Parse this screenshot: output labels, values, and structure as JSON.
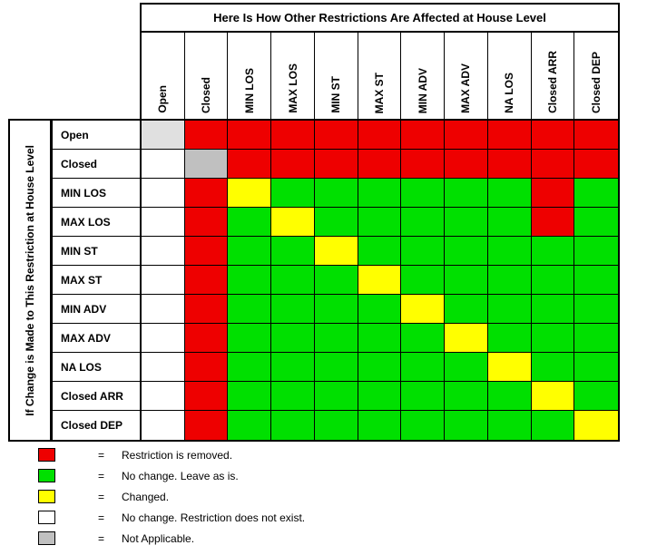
{
  "chart_data": {
    "type": "heatmap",
    "title": "Here Is How Other Restrictions Are Affected at House Level",
    "ylabel": "If Change is Made to This Restriction at House Level",
    "columns": [
      "Open",
      "Closed",
      "MIN LOS",
      "MAX LOS",
      "MIN ST",
      "MAX ST",
      "MIN ADV",
      "MAX ADV",
      "NA LOS",
      "Closed ARR",
      "Closed DEP"
    ],
    "rows": [
      "Open",
      "Closed",
      "MIN LOS",
      "MAX LOS",
      "MIN ST",
      "MAX ST",
      "MIN ADV",
      "MAX ADV",
      "NA LOS",
      "Closed ARR",
      "Closed DEP"
    ],
    "cells": [
      [
        "NA_LIGHT",
        "REMOVED",
        "REMOVED",
        "REMOVED",
        "REMOVED",
        "REMOVED",
        "REMOVED",
        "REMOVED",
        "REMOVED",
        "REMOVED",
        "REMOVED"
      ],
      [
        "NOT_EXIST",
        "NA",
        "REMOVED",
        "REMOVED",
        "REMOVED",
        "REMOVED",
        "REMOVED",
        "REMOVED",
        "REMOVED",
        "REMOVED",
        "REMOVED"
      ],
      [
        "NOT_EXIST",
        "REMOVED",
        "CHANGED",
        "NO_CHANGE",
        "NO_CHANGE",
        "NO_CHANGE",
        "NO_CHANGE",
        "NO_CHANGE",
        "NO_CHANGE",
        "REMOVED",
        "NO_CHANGE"
      ],
      [
        "NOT_EXIST",
        "REMOVED",
        "NO_CHANGE",
        "CHANGED",
        "NO_CHANGE",
        "NO_CHANGE",
        "NO_CHANGE",
        "NO_CHANGE",
        "NO_CHANGE",
        "REMOVED",
        "NO_CHANGE"
      ],
      [
        "NOT_EXIST",
        "REMOVED",
        "NO_CHANGE",
        "NO_CHANGE",
        "CHANGED",
        "NO_CHANGE",
        "NO_CHANGE",
        "NO_CHANGE",
        "NO_CHANGE",
        "NO_CHANGE",
        "NO_CHANGE"
      ],
      [
        "NOT_EXIST",
        "REMOVED",
        "NO_CHANGE",
        "NO_CHANGE",
        "NO_CHANGE",
        "CHANGED",
        "NO_CHANGE",
        "NO_CHANGE",
        "NO_CHANGE",
        "NO_CHANGE",
        "NO_CHANGE"
      ],
      [
        "NOT_EXIST",
        "REMOVED",
        "NO_CHANGE",
        "NO_CHANGE",
        "NO_CHANGE",
        "NO_CHANGE",
        "CHANGED",
        "NO_CHANGE",
        "NO_CHANGE",
        "NO_CHANGE",
        "NO_CHANGE"
      ],
      [
        "NOT_EXIST",
        "REMOVED",
        "NO_CHANGE",
        "NO_CHANGE",
        "NO_CHANGE",
        "NO_CHANGE",
        "NO_CHANGE",
        "CHANGED",
        "NO_CHANGE",
        "NO_CHANGE",
        "NO_CHANGE"
      ],
      [
        "NOT_EXIST",
        "REMOVED",
        "NO_CHANGE",
        "NO_CHANGE",
        "NO_CHANGE",
        "NO_CHANGE",
        "NO_CHANGE",
        "NO_CHANGE",
        "CHANGED",
        "NO_CHANGE",
        "NO_CHANGE"
      ],
      [
        "NOT_EXIST",
        "REMOVED",
        "NO_CHANGE",
        "NO_CHANGE",
        "NO_CHANGE",
        "NO_CHANGE",
        "NO_CHANGE",
        "NO_CHANGE",
        "NO_CHANGE",
        "CHANGED",
        "NO_CHANGE"
      ],
      [
        "NOT_EXIST",
        "REMOVED",
        "NO_CHANGE",
        "NO_CHANGE",
        "NO_CHANGE",
        "NO_CHANGE",
        "NO_CHANGE",
        "NO_CHANGE",
        "NO_CHANGE",
        "NO_CHANGE",
        "CHANGED"
      ]
    ],
    "status_colors": {
      "REMOVED": "#EE0000",
      "NO_CHANGE": "#00E000",
      "CHANGED": "#FFFF00",
      "NOT_EXIST": "#FFFFFF",
      "NA": "#C0C0C0",
      "NA_LIGHT": "#E0E0E0"
    },
    "legend": {
      "separator": "=",
      "position": "bottom-left",
      "entries": [
        {
          "status": "REMOVED",
          "label": "Restriction is removed."
        },
        {
          "status": "NO_CHANGE",
          "label": "No change. Leave as is."
        },
        {
          "status": "CHANGED",
          "label": "Changed."
        },
        {
          "status": "NOT_EXIST",
          "label": "No change. Restriction does not exist."
        },
        {
          "status": "NA",
          "label": "Not Applicable."
        }
      ]
    },
    "grid": true
  }
}
